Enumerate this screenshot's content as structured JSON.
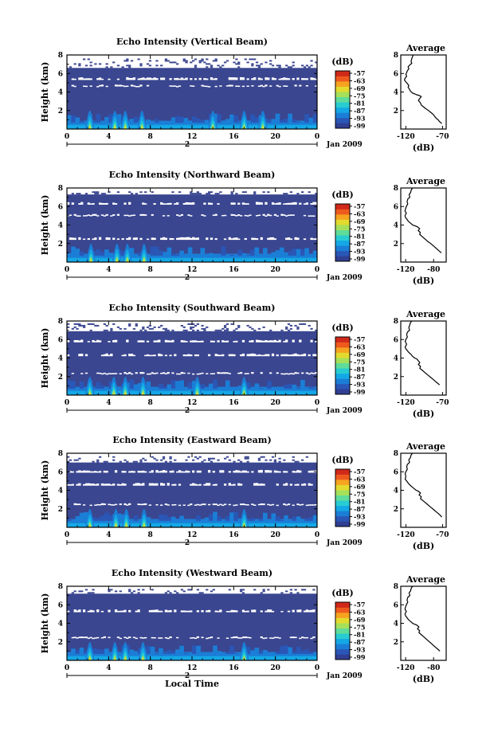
{
  "figure": {
    "time_axis_label": "Local Time",
    "date_label": "Jan 2009",
    "day_marker": "2",
    "colorbar_unit": "(dB)",
    "colorbar_ticks": [
      "-57",
      "-63",
      "-69",
      "-75",
      "-81",
      "-87",
      "-93",
      "-99"
    ],
    "colorbar_colors": [
      "#303e93",
      "#2a56b6",
      "#1b7ed6",
      "#14a8e6",
      "#28ccd2",
      "#5fdc9a",
      "#a6e05a",
      "#e3da2e",
      "#f6a41f",
      "#ee5a1d",
      "#d02819"
    ],
    "colors": {
      "background": "#3a4690",
      "axes": "#000000",
      "gap": "#ffffff",
      "profile_line": "#000000"
    }
  },
  "chart_data": [
    {
      "type": "heatmap",
      "title": "Echo Intensity (Vertical Beam)",
      "xlabel": "",
      "ylabel": "Height (km)",
      "xlim": [
        0,
        24
      ],
      "ylim": [
        0,
        8
      ],
      "x_ticks": [
        "0",
        "4",
        "8",
        "12",
        "16",
        "20",
        "0"
      ],
      "y_ticks": [
        "2",
        "4",
        "6",
        "8"
      ],
      "clim": [
        -99,
        -54
      ],
      "cloud_top_km": 6.6,
      "gap_bands_km": [
        [
          5.3,
          5.6
        ],
        [
          4.6,
          4.8
        ]
      ],
      "gap_density": 0.55,
      "strong_echo_times_h": [
        2.2,
        4.6,
        5.6,
        7.2,
        14.0,
        17.0,
        18.8
      ]
    },
    {
      "type": "heatmap",
      "title": "Echo Intensity (Northward Beam)",
      "xlabel": "",
      "ylabel": "Height (km)",
      "xlim": [
        0,
        24
      ],
      "ylim": [
        0,
        8
      ],
      "x_ticks": [
        "0",
        "4",
        "8",
        "12",
        "16",
        "20",
        "0"
      ],
      "y_ticks": [
        "2",
        "4",
        "6",
        "8"
      ],
      "clim": [
        -99,
        -54
      ],
      "cloud_top_km": 7.3,
      "gap_bands_km": [
        [
          6.2,
          6.5
        ],
        [
          5.0,
          5.2
        ],
        [
          2.4,
          2.7
        ]
      ],
      "gap_density": 0.6,
      "strong_echo_times_h": [
        2.3,
        4.8,
        5.8,
        7.4
      ]
    },
    {
      "type": "heatmap",
      "title": "Echo Intensity (Southward Beam)",
      "xlabel": "",
      "ylabel": "Height (km)",
      "xlim": [
        0,
        24
      ],
      "ylim": [
        0,
        8
      ],
      "x_ticks": [
        "0",
        "4",
        "8",
        "12",
        "16",
        "20",
        "0"
      ],
      "y_ticks": [
        "2",
        "4",
        "6",
        "8"
      ],
      "clim": [
        -99,
        -54
      ],
      "cloud_top_km": 6.9,
      "gap_bands_km": [
        [
          5.7,
          6.0
        ],
        [
          4.2,
          4.5
        ],
        [
          2.3,
          2.5
        ]
      ],
      "gap_density": 0.6,
      "strong_echo_times_h": [
        2.2,
        4.5,
        5.6,
        7.3,
        12.5,
        17.0
      ]
    },
    {
      "type": "heatmap",
      "title": "Echo Intensity (Eastward Beam)",
      "xlabel": "",
      "ylabel": "Height (km)",
      "xlim": [
        0,
        24
      ],
      "ylim": [
        0,
        8
      ],
      "x_ticks": [
        "0",
        "4",
        "8",
        "12",
        "16",
        "20",
        "0"
      ],
      "y_ticks": [
        "2",
        "4",
        "6",
        "8"
      ],
      "clim": [
        -99,
        -54
      ],
      "cloud_top_km": 7.0,
      "gap_bands_km": [
        [
          5.9,
          6.2
        ],
        [
          4.5,
          4.8
        ],
        [
          2.4,
          2.6
        ]
      ],
      "gap_density": 0.65,
      "strong_echo_times_h": [
        2.2,
        4.7,
        5.7,
        7.4,
        17.0
      ]
    },
    {
      "type": "heatmap",
      "title": "Echo Intensity (Westward Beam)",
      "xlabel": "Local Time",
      "ylabel": "Height (km)",
      "xlim": [
        0,
        24
      ],
      "ylim": [
        0,
        8
      ],
      "x_ticks": [
        "0",
        "4",
        "8",
        "12",
        "16",
        "20",
        "0"
      ],
      "y_ticks": [
        "2",
        "4",
        "6",
        "8"
      ],
      "clim": [
        -99,
        -54
      ],
      "cloud_top_km": 7.2,
      "gap_bands_km": [
        [
          5.2,
          5.5
        ],
        [
          2.4,
          2.6
        ]
      ],
      "gap_density": 0.6,
      "strong_echo_times_h": [
        2.2,
        4.6,
        5.6,
        7.3,
        17.0
      ]
    }
  ],
  "profiles": [
    {
      "type": "line",
      "title": "Average",
      "xlabel": "(dB)",
      "xlim": [
        -127,
        -65
      ],
      "ylim": [
        0,
        8
      ],
      "x_ticks": [
        "-120",
        "-70"
      ],
      "x_tick_values": [
        -120,
        -70
      ],
      "y_ticks": [
        "2",
        "4",
        "6",
        "8"
      ],
      "x": [
        -110,
        -111,
        -112,
        -113,
        -112,
        -115,
        -117,
        -116,
        -118,
        -119,
        -120,
        -119,
        -121,
        -122,
        -120,
        -118,
        -116,
        -117,
        -115,
        -114,
        -111,
        -105,
        -101,
        -99,
        -101,
        -103,
        -101,
        -100,
        -99,
        -96,
        -93,
        -89,
        -86,
        -83,
        -81,
        -79,
        -76,
        -74,
        -71
      ],
      "y": [
        8.0,
        7.8,
        7.6,
        7.3,
        7.1,
        6.9,
        6.7,
        6.5,
        6.3,
        6.1,
        5.9,
        5.7,
        5.5,
        5.3,
        5.1,
        4.9,
        4.7,
        4.5,
        4.3,
        4.1,
        3.9,
        3.7,
        3.6,
        3.5,
        3.3,
        3.1,
        2.9,
        2.8,
        2.6,
        2.4,
        2.2,
        2.0,
        1.8,
        1.6,
        1.4,
        1.2,
        1.0,
        0.8,
        0.6
      ]
    },
    {
      "type": "line",
      "title": "Average",
      "xlabel": "(dB)",
      "xlim": [
        -127,
        -62
      ],
      "ylim": [
        0,
        8
      ],
      "x_ticks": [
        "-120",
        "-80"
      ],
      "x_tick_values": [
        -120,
        -80
      ],
      "y_ticks": [
        "2",
        "4",
        "6",
        "8"
      ],
      "x": [
        -110,
        -112,
        -113,
        -115,
        -114,
        -117,
        -118,
        -117,
        -119,
        -120,
        -121,
        -119,
        -121,
        -120,
        -118,
        -116,
        -113,
        -110,
        -106,
        -103,
        -100,
        -102,
        -99,
        -100,
        -97,
        -94,
        -91,
        -88,
        -84,
        -81,
        -78,
        -75,
        -72,
        -69
      ],
      "y": [
        8.0,
        7.8,
        7.5,
        7.3,
        7.0,
        6.8,
        6.5,
        6.3,
        6.0,
        5.8,
        5.5,
        5.3,
        5.0,
        4.8,
        4.6,
        4.4,
        4.2,
        4.0,
        3.9,
        3.8,
        3.6,
        3.4,
        3.2,
        3.0,
        2.8,
        2.6,
        2.4,
        2.2,
        2.0,
        1.8,
        1.6,
        1.4,
        1.2,
        1.0
      ]
    },
    {
      "type": "line",
      "title": "Average",
      "xlabel": "(dB)",
      "xlim": [
        -127,
        -65
      ],
      "ylim": [
        0,
        8
      ],
      "x_ticks": [
        "-120",
        "-70"
      ],
      "x_tick_values": [
        -120,
        -70
      ],
      "y_ticks": [
        "2",
        "4",
        "6",
        "8"
      ],
      "x": [
        -112,
        -114,
        -115,
        -116,
        -115,
        -118,
        -119,
        -118,
        -120,
        -121,
        -119,
        -121,
        -120,
        -118,
        -116,
        -113,
        -111,
        -108,
        -105,
        -103,
        -101,
        -103,
        -100,
        -101,
        -98,
        -95,
        -92,
        -89,
        -86,
        -83,
        -80,
        -77,
        -74
      ],
      "y": [
        8.0,
        7.8,
        7.5,
        7.3,
        7.0,
        6.8,
        6.5,
        6.3,
        6.0,
        5.8,
        5.5,
        5.2,
        5.0,
        4.8,
        4.6,
        4.4,
        4.2,
        4.0,
        3.9,
        3.7,
        3.5,
        3.3,
        3.1,
        2.9,
        2.7,
        2.5,
        2.3,
        2.1,
        1.9,
        1.7,
        1.5,
        1.3,
        1.1
      ]
    },
    {
      "type": "line",
      "title": "Average",
      "xlabel": "(dB)",
      "xlim": [
        -127,
        -65
      ],
      "ylim": [
        0,
        8
      ],
      "x_ticks": [
        "-120",
        "-70"
      ],
      "x_tick_values": [
        -120,
        -70
      ],
      "y_ticks": [
        "2",
        "4",
        "6",
        "8"
      ],
      "x": [
        -111,
        -113,
        -114,
        -116,
        -115,
        -118,
        -119,
        -118,
        -120,
        -121,
        -120,
        -121,
        -119,
        -117,
        -115,
        -112,
        -109,
        -106,
        -103,
        -100,
        -102,
        -99,
        -100,
        -97,
        -94,
        -91,
        -88,
        -85,
        -82,
        -79,
        -76,
        -73,
        -71
      ],
      "y": [
        8.0,
        7.8,
        7.5,
        7.3,
        7.0,
        6.8,
        6.5,
        6.3,
        6.0,
        5.8,
        5.5,
        5.2,
        5.0,
        4.8,
        4.6,
        4.4,
        4.2,
        4.0,
        3.9,
        3.7,
        3.5,
        3.3,
        3.1,
        2.9,
        2.7,
        2.5,
        2.3,
        2.1,
        1.9,
        1.7,
        1.5,
        1.3,
        1.1
      ]
    },
    {
      "type": "line",
      "title": "Average",
      "xlabel": "(dB)",
      "xlim": [
        -127,
        -62
      ],
      "ylim": [
        0,
        8
      ],
      "x_ticks": [
        "-120",
        "-80"
      ],
      "x_tick_values": [
        -120,
        -80
      ],
      "y_ticks": [
        "2",
        "4",
        "6",
        "8"
      ],
      "x": [
        -110,
        -112,
        -113,
        -115,
        -114,
        -117,
        -118,
        -117,
        -119,
        -120,
        -121,
        -119,
        -121,
        -120,
        -118,
        -116,
        -113,
        -110,
        -107,
        -104,
        -101,
        -103,
        -100,
        -101,
        -98,
        -95,
        -92,
        -89,
        -86,
        -83,
        -80,
        -77,
        -74,
        -71
      ],
      "y": [
        8.0,
        7.8,
        7.5,
        7.3,
        7.0,
        6.8,
        6.5,
        6.3,
        6.0,
        5.8,
        5.5,
        5.3,
        5.0,
        4.8,
        4.6,
        4.4,
        4.2,
        4.0,
        3.9,
        3.8,
        3.6,
        3.4,
        3.2,
        3.0,
        2.8,
        2.6,
        2.4,
        2.2,
        2.0,
        1.8,
        1.6,
        1.4,
        1.2,
        1.0
      ]
    }
  ]
}
